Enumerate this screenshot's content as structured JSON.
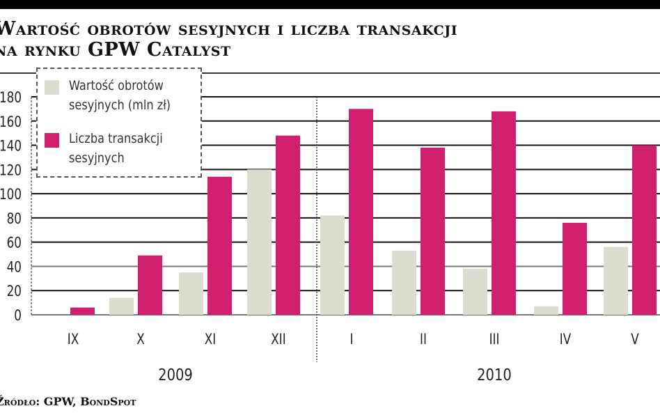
{
  "title_line1": "Wartość obrotów sesyjnych i liczba transakcji",
  "title_line2": "na rynku GPW Catalyst",
  "source": "Źródło: GPW, BondSpot",
  "chart_data": {
    "type": "bar",
    "title": "Wartość obrotów sesyjnych i liczba transakcji na rynku GPW Catalyst",
    "categories": [
      "IX",
      "X",
      "XI",
      "XII",
      "I",
      "II",
      "III",
      "IV",
      "V"
    ],
    "groups": [
      {
        "label": "2009",
        "categories": [
          "IX",
          "X",
          "XI",
          "XII"
        ]
      },
      {
        "label": "2010",
        "categories": [
          "I",
          "II",
          "III",
          "IV",
          "V"
        ]
      }
    ],
    "series": [
      {
        "name": "Wartość obrotów sesyjnych (mln zł)",
        "color": "#dcdcd0",
        "values": [
          0,
          14,
          35,
          120,
          82,
          53,
          38,
          7,
          56
        ]
      },
      {
        "name": "Liczba transakcji sesyjnych",
        "color": "#d01f6e",
        "values": [
          6,
          49,
          114,
          148,
          170,
          138,
          168,
          76,
          140
        ]
      }
    ],
    "yticks": [
      0,
      20,
      40,
      60,
      80,
      100,
      120,
      140,
      160,
      180
    ],
    "ylim": [
      0,
      180
    ],
    "grid": true,
    "legend": "top-left",
    "xlabel": "",
    "ylabel": ""
  }
}
